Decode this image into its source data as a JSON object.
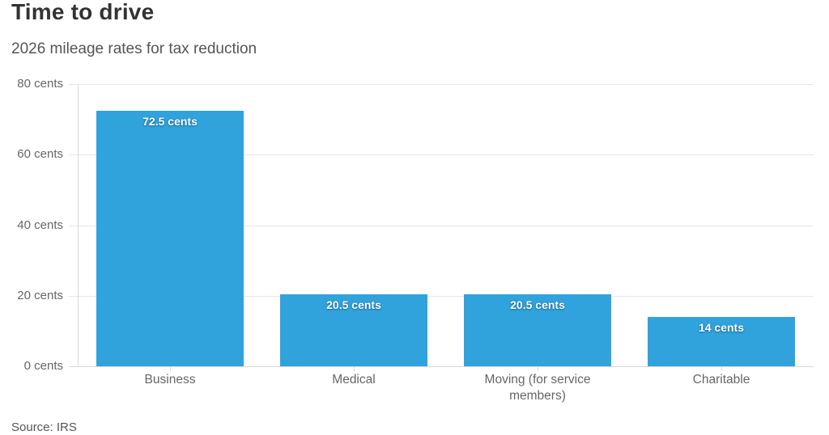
{
  "header": {
    "title": "Time to drive",
    "subtitle": "2026 mileage rates for tax reduction"
  },
  "chart_data": {
    "type": "bar",
    "title": "Time to drive",
    "subtitle": "2026 mileage rates for tax reduction",
    "categories": [
      "Business",
      "Medical",
      "Moving (for service members)",
      "Charitable"
    ],
    "values": [
      72.5,
      20.5,
      20.5,
      14
    ],
    "value_labels": [
      "72.5 cents",
      "20.5 cents",
      "20.5 cents",
      "14 cents"
    ],
    "unit": "cents",
    "xlabel": "",
    "ylabel": "",
    "ylim": [
      0,
      80
    ],
    "y_ticks": [
      "0 cents",
      "20 cents",
      "40 cents",
      "60 cents",
      "80 cents"
    ],
    "grid": true,
    "legend": "none",
    "bar_color": "#31a3dc",
    "gridline_color": "#e6e6e6",
    "axis_line_color": "#d9d9d9",
    "axis_label_color": "#666666"
  },
  "footer": {
    "source": "Source: IRS"
  }
}
